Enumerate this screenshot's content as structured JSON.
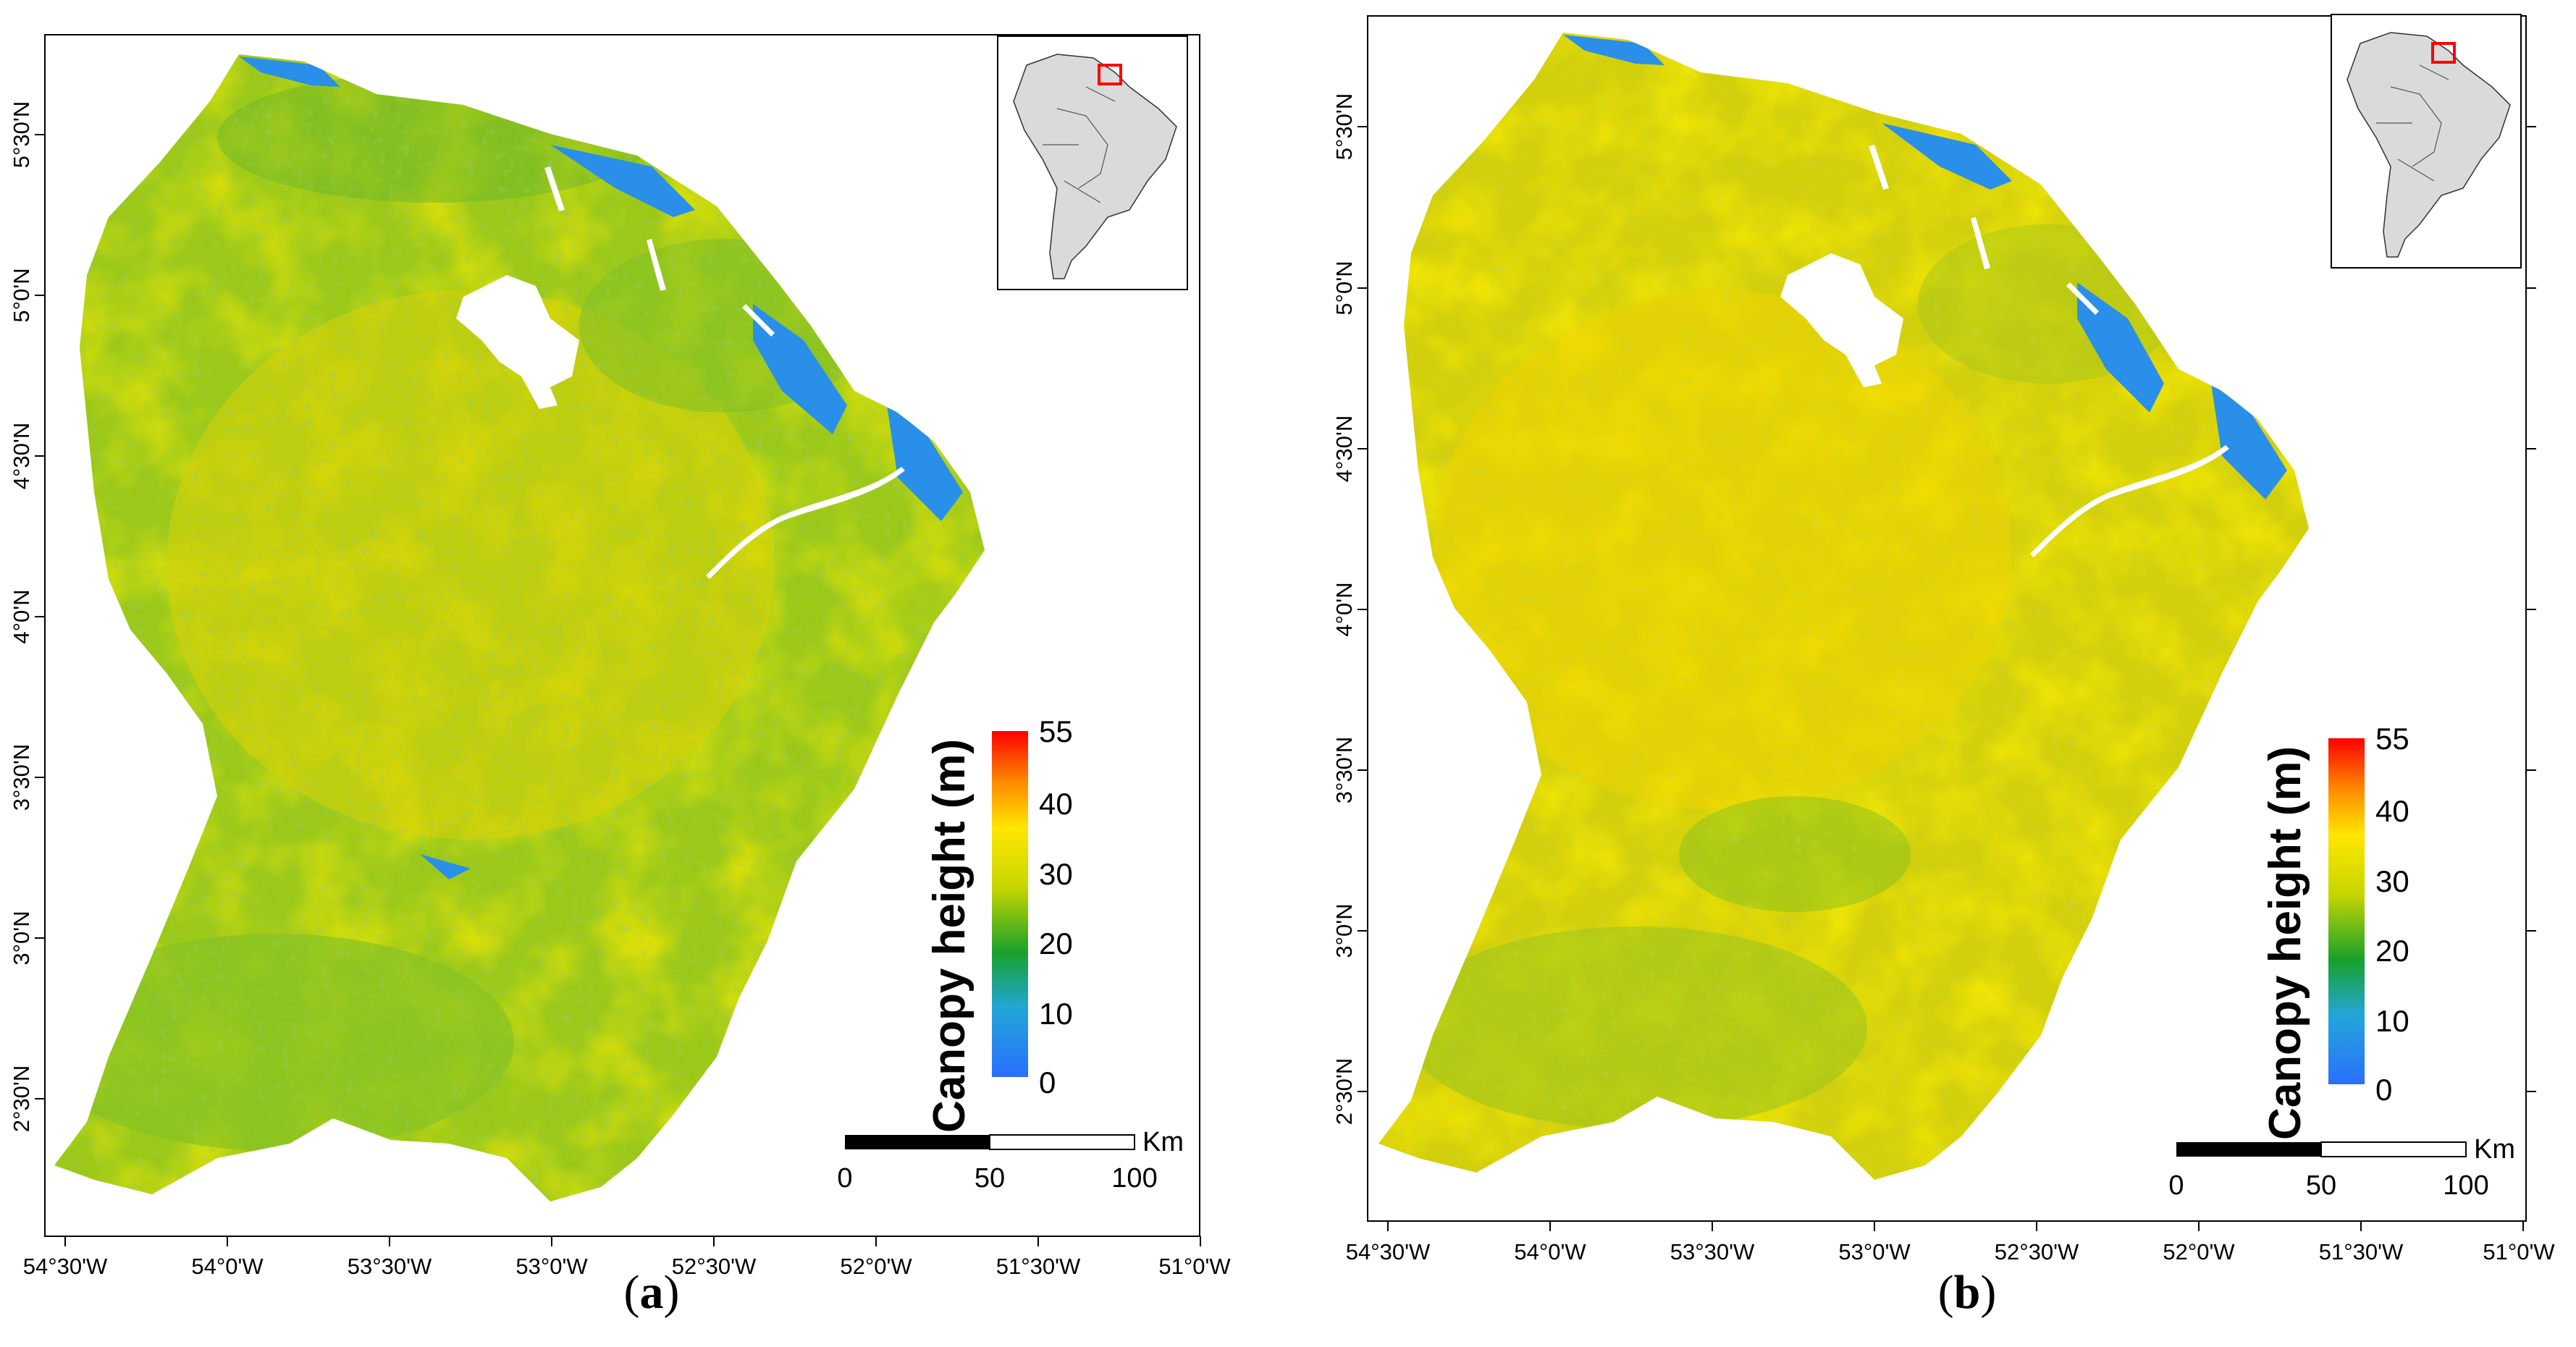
{
  "panels": [
    {
      "id": "a",
      "caption_open": "(",
      "caption_letter": "a",
      "caption_close": ")",
      "palette": {
        "base": "#9cc919",
        "light": "#c7cf10",
        "yellow": "#e6d200",
        "dark": "#5fb52a",
        "blue": "#2a8fe8"
      }
    },
    {
      "id": "b",
      "caption_open": "(",
      "caption_letter": "b",
      "caption_close": ")",
      "palette": {
        "base": "#d2cf0c",
        "light": "#e4d505",
        "yellow": "#f0d400",
        "dark": "#8cc21c",
        "blue": "#2a8fe8"
      }
    }
  ],
  "axes": {
    "lon_labels": [
      "54°30'W",
      "54°0'W",
      "53°30'W",
      "53°0'W",
      "52°30'W",
      "52°0'W",
      "51°30'W",
      "51°0'W"
    ],
    "lat_labels": [
      "5°30'N",
      "5°0'N",
      "4°30'N",
      "4°0'N",
      "3°30'N",
      "3°0'N",
      "2°30'N"
    ]
  },
  "legend": {
    "title": "Canopy height (m)",
    "ticks": [
      "55",
      "40",
      "30",
      "20",
      "10",
      "0"
    ],
    "colors": [
      "#ff0000",
      "#ff8c00",
      "#ffe600",
      "#c8d600",
      "#18a12a",
      "#22a6d8",
      "#2a6fff"
    ]
  },
  "scalebar": {
    "unit": "Km",
    "labels": [
      "0",
      "50",
      "100"
    ]
  },
  "inset": {
    "name": "South America locator map"
  }
}
